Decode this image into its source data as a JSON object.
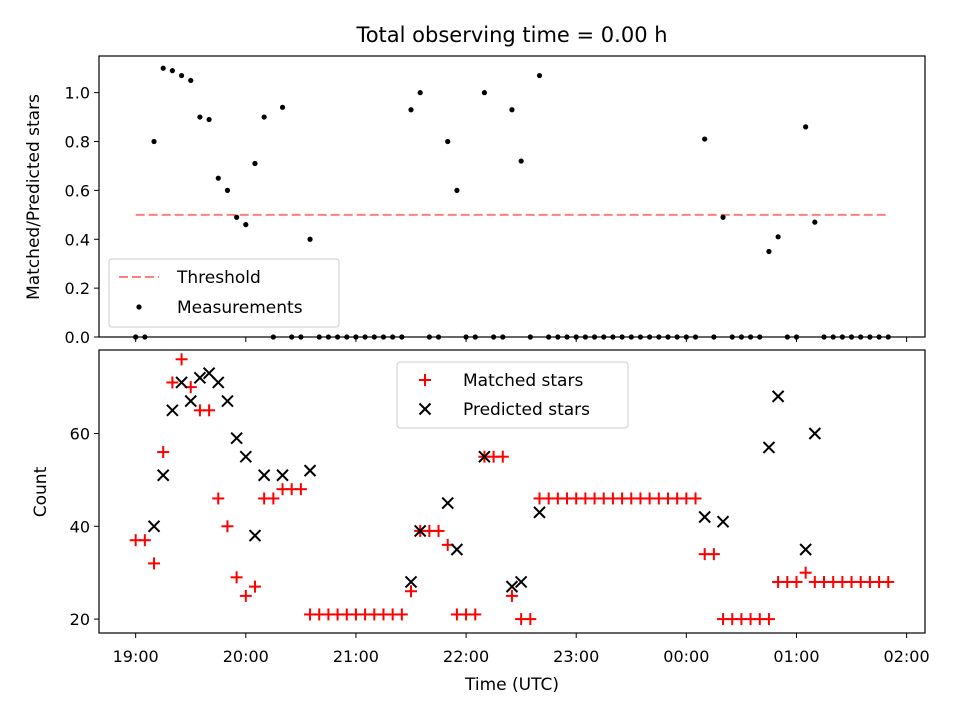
{
  "chart_data": [
    {
      "type": "scatter",
      "title": "Total observing time = 0.00 h",
      "ylabel": "Matched/Predicted stars",
      "xlabel": "",
      "ylim": [
        0,
        1.15
      ],
      "xlim_hours": [
        18.667,
        26.167
      ],
      "yticks": [
        "0.0",
        "0.2",
        "0.4",
        "0.6",
        "0.8",
        "1.0"
      ],
      "threshold": {
        "name": "Threshold",
        "value": 0.5,
        "x_start": "19:00",
        "x_end": "01:50",
        "color": "#ff7f7f",
        "style": "dashed"
      },
      "legend": {
        "placement": "lower-left",
        "entries": [
          "Threshold",
          "Measurements"
        ]
      },
      "series": [
        {
          "name": "Measurements",
          "color": "#000000",
          "marker": "dot",
          "points": [
            [
              "19:00",
              0
            ],
            [
              "19:05",
              0
            ],
            [
              "19:10",
              0.8
            ],
            [
              "19:15",
              1.1
            ],
            [
              "19:20",
              1.09
            ],
            [
              "19:25",
              1.07
            ],
            [
              "19:30",
              1.05
            ],
            [
              "19:35",
              0.9
            ],
            [
              "19:40",
              0.89
            ],
            [
              "19:45",
              0.65
            ],
            [
              "19:50",
              0.6
            ],
            [
              "19:55",
              0.49
            ],
            [
              "20:00",
              0.46
            ],
            [
              "20:05",
              0.71
            ],
            [
              "20:10",
              0.9
            ],
            [
              "20:15",
              0
            ],
            [
              "20:20",
              0.94
            ],
            [
              "20:25",
              0
            ],
            [
              "20:30",
              0
            ],
            [
              "20:35",
              0.4
            ],
            [
              "20:40",
              0
            ],
            [
              "20:45",
              0
            ],
            [
              "20:50",
              0
            ],
            [
              "20:55",
              0
            ],
            [
              "21:00",
              0
            ],
            [
              "21:05",
              0
            ],
            [
              "21:10",
              0
            ],
            [
              "21:15",
              0
            ],
            [
              "21:20",
              0
            ],
            [
              "21:25",
              0
            ],
            [
              "21:30",
              0.93
            ],
            [
              "21:35",
              1.0
            ],
            [
              "21:40",
              0
            ],
            [
              "21:45",
              0
            ],
            [
              "21:50",
              0.8
            ],
            [
              "21:55",
              0.6
            ],
            [
              "22:00",
              0
            ],
            [
              "22:05",
              0
            ],
            [
              "22:10",
              1.0
            ],
            [
              "22:15",
              0
            ],
            [
              "22:20",
              0
            ],
            [
              "22:25",
              0.93
            ],
            [
              "22:30",
              0.72
            ],
            [
              "22:35",
              0
            ],
            [
              "22:40",
              1.07
            ],
            [
              "22:45",
              0
            ],
            [
              "22:50",
              0
            ],
            [
              "22:55",
              0
            ],
            [
              "23:00",
              0
            ],
            [
              "23:05",
              0
            ],
            [
              "23:10",
              0
            ],
            [
              "23:15",
              0
            ],
            [
              "23:20",
              0
            ],
            [
              "23:25",
              0
            ],
            [
              "23:30",
              0
            ],
            [
              "23:35",
              0
            ],
            [
              "23:40",
              0
            ],
            [
              "23:45",
              0
            ],
            [
              "23:50",
              0
            ],
            [
              "23:55",
              0
            ],
            [
              "00:00",
              0
            ],
            [
              "00:05",
              0
            ],
            [
              "00:10",
              0.81
            ],
            [
              "00:15",
              0
            ],
            [
              "00:20",
              0.49
            ],
            [
              "00:25",
              0
            ],
            [
              "00:30",
              0
            ],
            [
              "00:35",
              0
            ],
            [
              "00:40",
              0
            ],
            [
              "00:45",
              0.35
            ],
            [
              "00:50",
              0.41
            ],
            [
              "00:55",
              0
            ],
            [
              "01:00",
              0
            ],
            [
              "01:05",
              0.86
            ],
            [
              "01:10",
              0.47
            ],
            [
              "01:15",
              0
            ],
            [
              "01:20",
              0
            ],
            [
              "01:25",
              0
            ],
            [
              "01:30",
              0
            ],
            [
              "01:35",
              0
            ],
            [
              "01:40",
              0
            ],
            [
              "01:45",
              0
            ],
            [
              "01:50",
              0
            ]
          ]
        }
      ]
    },
    {
      "type": "scatter",
      "title": "",
      "ylabel": "Count",
      "xlabel": "Time (UTC)",
      "ylim": [
        17,
        78
      ],
      "xlim_hours": [
        18.667,
        26.167
      ],
      "yticks": [
        "20",
        "40",
        "60"
      ],
      "xticks": [
        "19:00",
        "20:00",
        "21:00",
        "22:00",
        "23:00",
        "00:00",
        "01:00",
        "02:00"
      ],
      "legend": {
        "placement": "upper-center",
        "entries": [
          "Matched stars",
          "Predicted stars"
        ]
      },
      "series": [
        {
          "name": "Matched stars",
          "color": "#ff0000",
          "marker": "plus",
          "points": [
            [
              "19:00",
              37
            ],
            [
              "19:05",
              37
            ],
            [
              "19:10",
              32
            ],
            [
              "19:15",
              56
            ],
            [
              "19:20",
              71
            ],
            [
              "19:25",
              76
            ],
            [
              "19:30",
              70
            ],
            [
              "19:35",
              65
            ],
            [
              "19:40",
              65
            ],
            [
              "19:45",
              46
            ],
            [
              "19:50",
              40
            ],
            [
              "19:55",
              29
            ],
            [
              "20:00",
              25
            ],
            [
              "20:05",
              27
            ],
            [
              "20:10",
              46
            ],
            [
              "20:15",
              46
            ],
            [
              "20:20",
              48
            ],
            [
              "20:25",
              48
            ],
            [
              "20:30",
              48
            ],
            [
              "20:35",
              21
            ],
            [
              "20:40",
              21
            ],
            [
              "20:45",
              21
            ],
            [
              "20:50",
              21
            ],
            [
              "20:55",
              21
            ],
            [
              "21:00",
              21
            ],
            [
              "21:05",
              21
            ],
            [
              "21:10",
              21
            ],
            [
              "21:15",
              21
            ],
            [
              "21:20",
              21
            ],
            [
              "21:25",
              21
            ],
            [
              "21:30",
              26
            ],
            [
              "21:35",
              39
            ],
            [
              "21:40",
              39
            ],
            [
              "21:45",
              39
            ],
            [
              "21:50",
              36
            ],
            [
              "21:55",
              21
            ],
            [
              "22:00",
              21
            ],
            [
              "22:05",
              21
            ],
            [
              "22:10",
              55
            ],
            [
              "22:15",
              55
            ],
            [
              "22:20",
              55
            ],
            [
              "22:25",
              25
            ],
            [
              "22:30",
              20
            ],
            [
              "22:35",
              20
            ],
            [
              "22:40",
              46
            ],
            [
              "22:45",
              46
            ],
            [
              "22:50",
              46
            ],
            [
              "22:55",
              46
            ],
            [
              "23:00",
              46
            ],
            [
              "23:05",
              46
            ],
            [
              "23:10",
              46
            ],
            [
              "23:15",
              46
            ],
            [
              "23:20",
              46
            ],
            [
              "23:25",
              46
            ],
            [
              "23:30",
              46
            ],
            [
              "23:35",
              46
            ],
            [
              "23:40",
              46
            ],
            [
              "23:45",
              46
            ],
            [
              "23:50",
              46
            ],
            [
              "23:55",
              46
            ],
            [
              "00:00",
              46
            ],
            [
              "00:05",
              46
            ],
            [
              "00:10",
              34
            ],
            [
              "00:15",
              34
            ],
            [
              "00:20",
              20
            ],
            [
              "00:25",
              20
            ],
            [
              "00:30",
              20
            ],
            [
              "00:35",
              20
            ],
            [
              "00:40",
              20
            ],
            [
              "00:45",
              20
            ],
            [
              "00:50",
              28
            ],
            [
              "00:55",
              28
            ],
            [
              "01:00",
              28
            ],
            [
              "01:05",
              30
            ],
            [
              "01:10",
              28
            ],
            [
              "01:15",
              28
            ],
            [
              "01:20",
              28
            ],
            [
              "01:25",
              28
            ],
            [
              "01:30",
              28
            ],
            [
              "01:35",
              28
            ],
            [
              "01:40",
              28
            ],
            [
              "01:45",
              28
            ],
            [
              "01:50",
              28
            ]
          ]
        },
        {
          "name": "Predicted stars",
          "color": "#000000",
          "marker": "x",
          "points": [
            [
              "19:10",
              40
            ],
            [
              "19:15",
              51
            ],
            [
              "19:20",
              65
            ],
            [
              "19:25",
              71
            ],
            [
              "19:30",
              67
            ],
            [
              "19:35",
              72
            ],
            [
              "19:40",
              73
            ],
            [
              "19:45",
              71
            ],
            [
              "19:50",
              67
            ],
            [
              "19:55",
              59
            ],
            [
              "20:00",
              55
            ],
            [
              "20:05",
              38
            ],
            [
              "20:10",
              51
            ],
            [
              "20:20",
              51
            ],
            [
              "20:35",
              52
            ],
            [
              "21:30",
              28
            ],
            [
              "21:35",
              39
            ],
            [
              "21:50",
              45
            ],
            [
              "21:55",
              35
            ],
            [
              "22:10",
              55
            ],
            [
              "22:25",
              27
            ],
            [
              "22:30",
              28
            ],
            [
              "22:40",
              43
            ],
            [
              "00:10",
              42
            ],
            [
              "00:20",
              41
            ],
            [
              "00:45",
              57
            ],
            [
              "00:50",
              68
            ],
            [
              "01:05",
              35
            ],
            [
              "01:10",
              60
            ]
          ]
        }
      ]
    }
  ]
}
